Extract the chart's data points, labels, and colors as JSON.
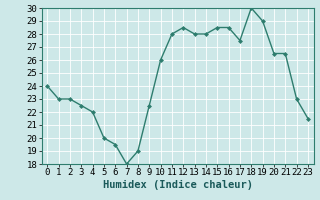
{
  "x": [
    0,
    1,
    2,
    3,
    4,
    5,
    6,
    7,
    8,
    9,
    10,
    11,
    12,
    13,
    14,
    15,
    16,
    17,
    18,
    19,
    20,
    21,
    22,
    23
  ],
  "y": [
    24.0,
    23.0,
    23.0,
    22.5,
    22.0,
    20.0,
    19.5,
    18.0,
    19.0,
    22.5,
    26.0,
    28.0,
    28.5,
    28.0,
    28.0,
    28.5,
    28.5,
    27.5,
    30.0,
    29.0,
    26.5,
    26.5,
    23.0,
    21.5
  ],
  "line_color": "#2e7d6e",
  "marker": "D",
  "marker_size": 2.0,
  "bg_color": "#cde8e8",
  "grid_color": "#b0d0d0",
  "xlabel": "Humidex (Indice chaleur)",
  "ylim": [
    18,
    30
  ],
  "xlim": [
    -0.5,
    23.5
  ],
  "yticks": [
    18,
    19,
    20,
    21,
    22,
    23,
    24,
    25,
    26,
    27,
    28,
    29,
    30
  ],
  "linewidth": 1.0,
  "xlabel_fontsize": 7.5,
  "tick_fontsize": 6.5
}
